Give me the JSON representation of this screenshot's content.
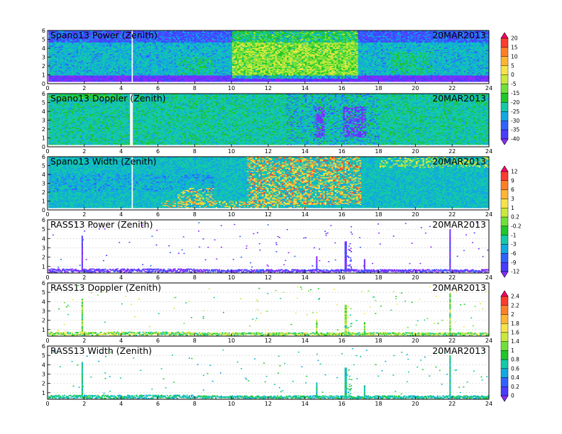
{
  "chart_data": [
    {
      "type": "heatmap",
      "title": "Spano13 Power (Zenith)",
      "date": "20MAR2013",
      "x_ticks": [
        "0",
        "2",
        "4",
        "6",
        "8",
        "10",
        "12",
        "14",
        "16",
        "18",
        "20",
        "22",
        "24"
      ],
      "y_ticks": [
        "0",
        "1",
        "2",
        "3",
        "4",
        "5",
        "6"
      ],
      "xlim": [
        0,
        24
      ],
      "ylim": [
        0,
        6
      ],
      "colorbar": "cb1"
    },
    {
      "type": "heatmap",
      "title": "Spano13 Doppler (Zenith)",
      "date": "20MAR2013",
      "x_ticks": [
        "0",
        "2",
        "4",
        "6",
        "8",
        "10",
        "12",
        "14",
        "16",
        "18",
        "20",
        "22",
        "24"
      ],
      "y_ticks": [
        "0",
        "1",
        "2",
        "3",
        "4",
        "5",
        "6"
      ],
      "xlim": [
        0,
        24
      ],
      "ylim": [
        0,
        6
      ],
      "colorbar": "cb1"
    },
    {
      "type": "heatmap",
      "title": "Spano13 Width (Zenith)",
      "date": "20MAR2013",
      "x_ticks": [
        "0",
        "2",
        "4",
        "6",
        "8",
        "10",
        "12",
        "14",
        "16",
        "18",
        "20",
        "22",
        "24"
      ],
      "y_ticks": [
        "0",
        "1",
        "2",
        "3",
        "4",
        "5",
        "6"
      ],
      "xlim": [
        0,
        24
      ],
      "ylim": [
        0,
        6
      ],
      "colorbar": "cb2"
    },
    {
      "type": "heatmap",
      "title": "RASS13 Power (Zenith)",
      "date": "20MAR2013",
      "x_ticks": [
        "0",
        "2",
        "4",
        "6",
        "8",
        "10",
        "12",
        "14",
        "16",
        "18",
        "20",
        "22",
        "24"
      ],
      "y_ticks": [
        "1",
        "2",
        "3",
        "4",
        "5",
        "6"
      ],
      "xlim": [
        0,
        24
      ],
      "ylim": [
        0.3,
        6
      ],
      "colorbar": "cb2"
    },
    {
      "type": "heatmap",
      "title": "RASS13 Doppler (Zenith)",
      "date": "20MAR2013",
      "x_ticks": [
        "0",
        "2",
        "4",
        "6",
        "8",
        "10",
        "12",
        "14",
        "16",
        "18",
        "20",
        "22",
        "24"
      ],
      "y_ticks": [
        "1",
        "2",
        "3",
        "4",
        "5",
        "6"
      ],
      "xlim": [
        0,
        24
      ],
      "ylim": [
        0.3,
        6
      ],
      "colorbar": "cb3"
    },
    {
      "type": "heatmap",
      "title": "RASS13 Width (Zenith)",
      "date": "20MAR2013",
      "x_ticks": [
        "0",
        "2",
        "4",
        "6",
        "8",
        "10",
        "12",
        "14",
        "16",
        "18",
        "20",
        "22",
        "24"
      ],
      "y_ticks": [
        "1",
        "2",
        "3",
        "4",
        "5",
        "6"
      ],
      "xlim": [
        0,
        24
      ],
      "ylim": [
        0.3,
        6
      ],
      "colorbar": "cb3"
    }
  ],
  "colorbars": {
    "cb1": {
      "labels": [
        "20",
        "15",
        "10",
        "5",
        "0",
        "-5",
        "-15",
        "-20",
        "-25",
        "-30",
        "-35",
        "-40"
      ],
      "colors": [
        "#ff0066",
        "#ff3b2f",
        "#ff7f27",
        "#ffb533",
        "#f6e34a",
        "#c9e83c",
        "#6fe03a",
        "#1fc72a",
        "#14c9a8",
        "#12a8e0",
        "#3062ff",
        "#4a3cff",
        "#8a2cff"
      ]
    },
    "cb2": {
      "labels": [
        "12",
        "9",
        "6",
        "3",
        "1",
        "0.2",
        "-0.2",
        "-1",
        "-3",
        "-6",
        "-9",
        "-12"
      ],
      "colors": [
        "#ff0066",
        "#ff3b2f",
        "#ff7f27",
        "#ffb533",
        "#f6e34a",
        "#c9e83c",
        "#6fe03a",
        "#1fc72a",
        "#14c9a8",
        "#12a8e0",
        "#3062ff",
        "#4a3cff",
        "#8a2cff"
      ]
    },
    "cb3": {
      "labels": [
        "2.4",
        "2.2",
        "2",
        "1.8",
        "1.6",
        "1.4",
        "1",
        "0.8",
        "0.6",
        "0.4",
        "0.2",
        "0"
      ],
      "colors": [
        "#ff0066",
        "#ff3b2f",
        "#ff7f27",
        "#ffb533",
        "#f6e34a",
        "#c9e83c",
        "#6fe03a",
        "#1fc72a",
        "#14c9a8",
        "#12a8e0",
        "#3062ff",
        "#4a3cff",
        "#8a2cff"
      ]
    }
  },
  "colors": {
    "frame": "#000000",
    "background": "#ffffff",
    "gridline": "#b8b8b8"
  }
}
